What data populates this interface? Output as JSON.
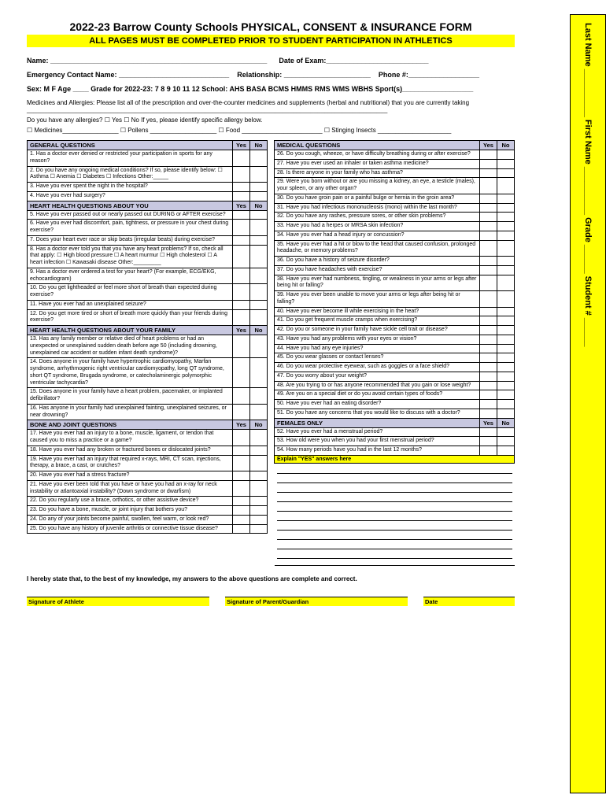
{
  "title": "2022-23 Barrow County Schools PHYSICAL, CONSENT & INSURANCE FORM",
  "subtitle": "ALL PAGES MUST BE COMPLETED PRIOR TO STUDENT PARTICIPATION IN ATHLETICS",
  "sideTab": "Last Name __________  First Name __________  Grade ______  Student # ______",
  "fields": {
    "name": "Name: _______________________________________________________",
    "dateOfExam": "Date of Exam:__________________________",
    "emergencyContact": "Emergency Contact Name: ____________________________",
    "relationship": "Relationship: ______________________",
    "phone": "Phone #:__________________",
    "sexAge": "Sex:  M  F   Age ____   Grade for 2022-23:  7  8  9  10  11  12     School:  AHS  BASA  BCMS  HMMS  RMS  WMS  WBHS  Sport(s)__________________"
  },
  "medicines": {
    "intro": "Medicines and Allergies: Please list all of the prescription and over-the-counter medicines and supplements (herbal and nutritional) that you are currently taking _______________________________________________________________________________________________________",
    "allergyQ": "Do you have any allergies?        ☐ Yes ☐ No       If yes, please identify specific allergy below.",
    "allergyList": "☐ Medicines________________  ☐ Pollens ___________________  ☐ Food _______________________  ☐ Stinging Insects _____________________"
  },
  "headers": {
    "yes": "Yes",
    "no": "No"
  },
  "sections": {
    "general": "GENERAL QUESTIONS",
    "heartYou": "HEART HEALTH QUESTIONS ABOUT YOU",
    "heartFamily": "HEART HEALTH QUESTIONS ABOUT YOUR FAMILY",
    "bone": "BONE AND JOINT QUESTIONS",
    "medical": "MEDICAL QUESTIONS",
    "females": "FEMALES ONLY",
    "explain": "Explain \"YES\" answers here"
  },
  "left": {
    "general": [
      "1. Has a doctor ever denied or restricted your participation in sports for any reason?",
      "2. Do you have any ongoing medical conditions? If so, please identify below:  ☐ Asthma    ☐ Anemia    ☐ Diabetes    ☐ Infections Other:_____",
      "3. Have you ever spent the night in the hospital?",
      "4. Have you ever had surgery?"
    ],
    "heartYou": [
      "5. Have you ever passed out or nearly passed out DURING or AFTER exercise?",
      "6. Have you ever had discomfort, pain, tightness, or pressure in your chest during exercise?",
      "7. Does your heart ever race or skip beats (irregular beats) during exercise?",
      "8. Has a doctor ever told you that you have any heart problems? If so, check all that apply:  ☐ High blood pressure    ☐ A heart murmur  ☐ High cholesterol ☐ A heart infection ☐ Kawasaki disease  Other:_________",
      "9. Has a doctor ever ordered a test for your heart? (For example, ECG/EKG, echocardiogram)",
      "10. Do you get lightheaded or feel more short of breath than expected during exercise?",
      "11. Have you ever had an unexplained seizure?",
      "12. Do you get more tired or short of breath more quickly than your friends during exercise?"
    ],
    "heartFamily": [
      "13. Has any family member or relative died of heart problems or had an unexpected or unexplained sudden death before age 50 (including drowning, unexplained car accident or sudden infant death syndrome)?",
      "14. Does anyone in your family have hypertrophic cardiomyopathy, Marfan syndrome, arrhythmogenic right ventricular cardiomyopathy, long QT syndrome, short QT syndrome, Brugada syndrome, or catecholaminergic polymorphic ventricular tachycardia?",
      "15. Does anyone in your family have a heart problem, pacemaker, or implanted defibrillator?",
      "16. Has anyone in your family had unexplained fainting, unexplained seizures, or near drowning?"
    ],
    "bone": [
      "17. Have you ever had an injury to a bone, muscle, ligament, or tendon that caused you to miss a practice or a game?",
      "18. Have you ever had any broken or fractured bones or dislocated joints?",
      "19. Have you ever had an injury that required x-rays, MRI, CT scan, injections, therapy, a brace, a cast, or crutches?",
      "20. Have you ever had a stress fracture?",
      "21. Have you ever been told that you have or have you had an x-ray for neck instability or atlantoaxial instability? (Down syndrome or dwarfism)",
      "22. Do you regularly use a brace, orthotics, or other assistive device?",
      "23. Do you have a bone, muscle, or joint injury that bothers you?",
      "24. Do any of your joints become painful, swollen, feel warm, or look red?",
      "25. Do you have any history of juvenile arthritis or connective tissue disease?"
    ]
  },
  "right": {
    "medical": [
      "26. Do you cough, wheeze, or have difficulty breathing during or after exercise?",
      "27. Have you ever used an inhaler or taken asthma medicine?",
      "28. Is there anyone in your family who has asthma?",
      "29. Were you born without or are you missing a kidney, an eye, a testicle (males), your spleen, or any other organ?",
      "30. Do you have groin pain or a painful bulge or hernia in the groin area?",
      "31. Have you had infectious mononucleosis (mono) within the last month?",
      "32. Do you have any rashes, pressure sores, or other skin problems?",
      "33. Have you had a herpes or MRSA skin infection?",
      "34. Have you ever had a head injury or concussion?",
      "35. Have you ever had a hit or blow to the head that caused confusion, prolonged headache, or memory problems?",
      "36. Do you have a history of seizure disorder?",
      "37. Do you have headaches with exercise?",
      "38. Have you ever had numbness, tingling, or weakness in your arms or legs after being hit or falling?",
      "39. Have you ever been unable to move your arms or legs after being hit or falling?",
      "40. Have you ever become ill while exercising in the heat?",
      "41. Do you get frequent muscle cramps when exercising?",
      "42. Do you or someone in your family have sickle cell trait or disease?",
      "43. Have you had any problems with your eyes or vision?",
      "44. Have you had any eye injuries?",
      "45. Do you wear glasses or contact lenses?",
      "46. Do you wear protective eyewear, such as goggles or a face shield?",
      "47. Do you worry about your weight?",
      "48. Are you trying to or has anyone recommended that you gain or lose weight?",
      "49. Are you on a special diet or do you avoid certain types of foods?",
      "50. Have you ever had an eating disorder?",
      "51. Do you have any concerns that you would like to discuss with a doctor?"
    ],
    "females": [
      "52. Have you ever had a menstrual period?",
      "53. How old were you when you had your first menstrual period?",
      "54. How many periods have you had in the last 12 months?"
    ]
  },
  "consent": "I hereby state that, to the best of my knowledge, my answers to the above questions are complete and correct.",
  "sigs": {
    "athlete": "Signature of Athlete",
    "parent": "Signature of Parent/Guardian",
    "date": "Date"
  }
}
